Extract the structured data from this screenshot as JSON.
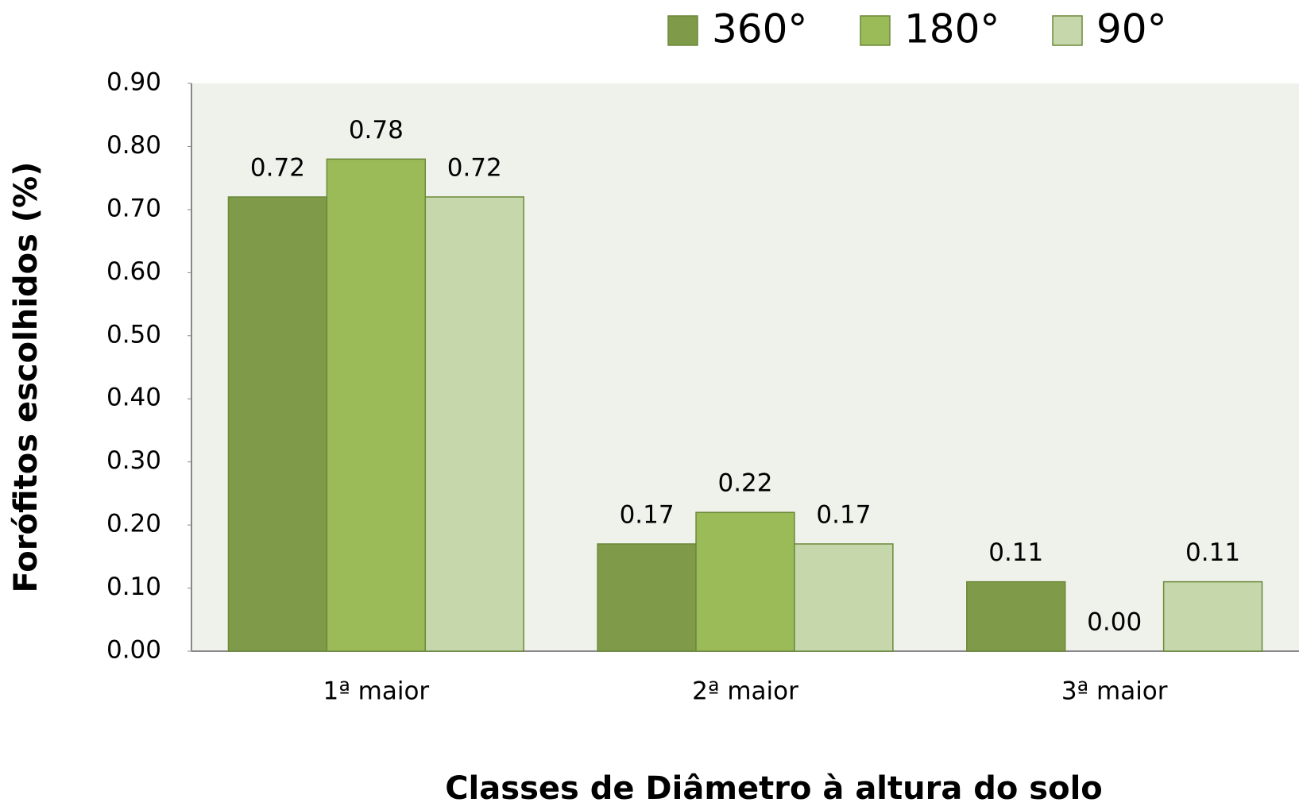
{
  "chart_data": {
    "type": "bar",
    "x_label": "Classes de Diâmetro à altura do solo",
    "y_label": "Forófitos escolhidos (%)",
    "categories": [
      "1ª maior",
      "2ª maior",
      "3ª maior"
    ],
    "series": [
      {
        "name": "360°",
        "color": "#7f9a48",
        "values": [
          0.72,
          0.17,
          0.11
        ],
        "value_labels": [
          "0.72",
          "0.17",
          "0.11"
        ]
      },
      {
        "name": "180°",
        "color": "#9bbb59",
        "values": [
          0.78,
          0.22,
          0.0
        ],
        "value_labels": [
          "0.78",
          "0.22",
          "0.00"
        ]
      },
      {
        "name": "90°",
        "color": "#c6d7ac",
        "values": [
          0.72,
          0.17,
          0.11
        ],
        "value_labels": [
          "0.72",
          "0.17",
          "0.11"
        ]
      }
    ],
    "ylim": [
      0,
      0.9
    ],
    "yticks": [
      {
        "value": 0,
        "label": "0.00"
      },
      {
        "value": 0.1,
        "label": "0.10"
      },
      {
        "value": 0.2,
        "label": "0.20"
      },
      {
        "value": 0.3,
        "label": "0.30"
      },
      {
        "value": 0.4,
        "label": "0.40"
      },
      {
        "value": 0.5,
        "label": "0.50"
      },
      {
        "value": 0.6,
        "label": "0.60"
      },
      {
        "value": 0.7,
        "label": "0.70"
      },
      {
        "value": 0.8,
        "label": "0.80"
      },
      {
        "value": 0.9,
        "label": "0.90"
      }
    ],
    "legend": "top"
  }
}
